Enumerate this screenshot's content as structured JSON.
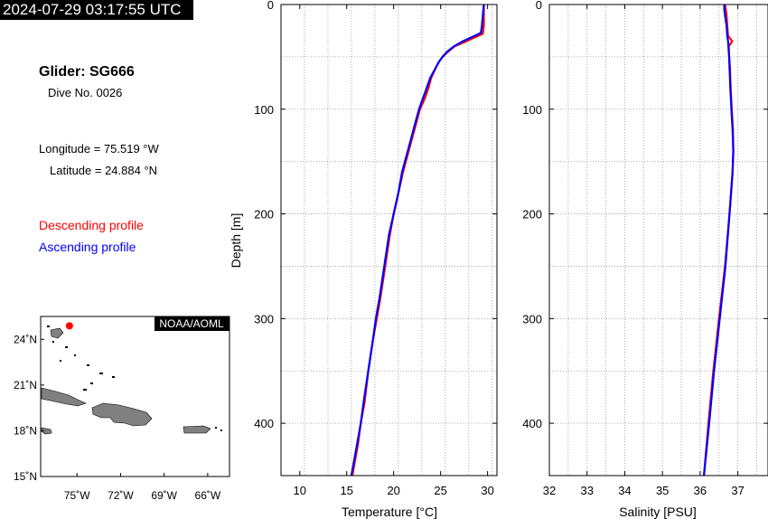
{
  "timestamp": "2024-07-29 03:17:55 UTC",
  "glider": "Glider: SG666",
  "dive": "Dive No. 0026",
  "longitude": "Longitude = 75.519 °W",
  "latitude": "Latitude = 24.884 °N",
  "legend": {
    "descending": "Descending profile",
    "ascending": "Ascending profile",
    "descending_color": "#ff0000",
    "ascending_color": "#0000ff"
  },
  "map": {
    "badge": "NOAA/AOML",
    "lat_labels": [
      "24˚N",
      "21˚N",
      "18˚N",
      "15˚N"
    ],
    "lon_labels": [
      "75˚W",
      "72˚W",
      "69˚W",
      "66˚W"
    ],
    "lat_values": [
      24,
      21,
      18,
      15
    ],
    "lon_values": [
      -75,
      -72,
      -69,
      -66
    ],
    "extent": {
      "lon": [
        -77.5,
        -64.5
      ],
      "lat": [
        15,
        25.5
      ]
    },
    "glider_position": {
      "lon": -75.519,
      "lat": 24.884
    },
    "marker_color": "#ff0000",
    "land_color": "#808080"
  },
  "chart_data": [
    {
      "type": "line",
      "xlabel": "Temperature [°C]",
      "ylabel": "Depth [m]",
      "xlim": [
        8,
        31
      ],
      "ylim": [
        450,
        0
      ],
      "xticks": [
        10,
        15,
        20,
        25,
        30
      ],
      "yticks": [
        0,
        100,
        200,
        300,
        400
      ],
      "grid": true,
      "series": [
        {
          "color": "#ff0000",
          "y": [
            0,
            10,
            20,
            28,
            32,
            36,
            40,
            45,
            50,
            55,
            60,
            70,
            80,
            90,
            100,
            110,
            120,
            140,
            160,
            180,
            200,
            220,
            250,
            280,
            300,
            320,
            350,
            380,
            400,
            420,
            450
          ],
          "x": [
            29.6,
            29.6,
            29.6,
            29.5,
            28.5,
            27.5,
            26.5,
            25.8,
            25.2,
            24.8,
            24.5,
            24.0,
            23.7,
            23.3,
            22.8,
            22.5,
            22.2,
            21.6,
            21.0,
            20.5,
            20.0,
            19.6,
            19.1,
            18.6,
            18.2,
            17.8,
            17.3,
            16.9,
            16.5,
            16.2,
            15.6
          ]
        },
        {
          "color": "#0000ff",
          "y": [
            0,
            10,
            20,
            27,
            30,
            35,
            40,
            45,
            50,
            55,
            60,
            70,
            80,
            90,
            100,
            110,
            120,
            140,
            160,
            180,
            200,
            220,
            250,
            280,
            300,
            320,
            350,
            380,
            400,
            420,
            450
          ],
          "x": [
            29.6,
            29.5,
            29.4,
            29.3,
            28.6,
            27.4,
            26.4,
            25.7,
            25.2,
            24.8,
            24.5,
            23.9,
            23.5,
            23.1,
            22.7,
            22.4,
            22.1,
            21.5,
            20.9,
            20.5,
            20.0,
            19.5,
            19.0,
            18.5,
            18.1,
            17.8,
            17.3,
            16.8,
            16.5,
            16.1,
            15.5
          ]
        }
      ]
    },
    {
      "type": "line",
      "xlabel": "Salinity [PSU]",
      "ylabel": "",
      "xlim": [
        32,
        37.8
      ],
      "ylim": [
        450,
        0
      ],
      "xticks": [
        32,
        33,
        34,
        35,
        36,
        37
      ],
      "yticks": [
        0,
        100,
        200,
        300,
        400
      ],
      "grid": true,
      "series": [
        {
          "color": "#ff0000",
          "y": [
            0,
            5,
            10,
            20,
            30,
            35,
            40,
            50,
            60,
            70,
            80,
            100,
            120,
            140,
            160,
            200,
            250,
            300,
            350,
            400,
            450
          ],
          "x": [
            36.66,
            36.68,
            36.7,
            36.72,
            36.74,
            36.85,
            36.76,
            36.77,
            36.79,
            36.8,
            36.81,
            36.84,
            36.87,
            36.88,
            36.86,
            36.78,
            36.66,
            36.5,
            36.35,
            36.22,
            36.1
          ]
        },
        {
          "color": "#0000ff",
          "y": [
            0,
            5,
            10,
            20,
            30,
            35,
            40,
            50,
            60,
            70,
            80,
            100,
            120,
            140,
            160,
            200,
            250,
            300,
            350,
            400,
            450
          ],
          "x": [
            36.64,
            36.64,
            36.66,
            36.7,
            36.72,
            36.74,
            36.75,
            36.77,
            36.78,
            36.79,
            36.8,
            36.83,
            36.86,
            36.88,
            36.86,
            36.78,
            36.67,
            36.52,
            36.37,
            36.24,
            36.1
          ]
        }
      ]
    }
  ]
}
